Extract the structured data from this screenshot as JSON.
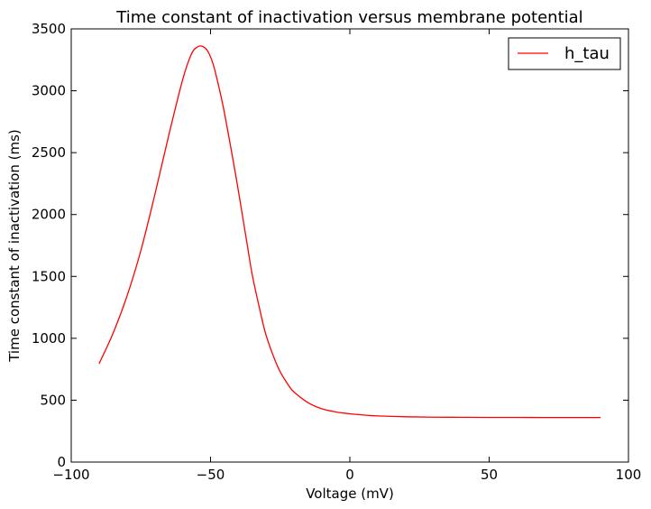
{
  "chart_data": {
    "type": "line",
    "title": "Time constant of inactivation versus membrane potential",
    "xlabel": "Voltage (mV)",
    "ylabel": "Time constant of inactivation (ms)",
    "xlim": [
      -100,
      100
    ],
    "ylim": [
      0,
      3500
    ],
    "xticks": [
      -100,
      -50,
      0,
      50,
      100
    ],
    "xtick_labels": [
      "−100",
      "−50",
      "0",
      "50",
      "100"
    ],
    "yticks": [
      0,
      500,
      1000,
      1500,
      2000,
      2500,
      3000,
      3500
    ],
    "ytick_labels": [
      "0",
      "500",
      "1000",
      "1500",
      "2000",
      "2500",
      "3000",
      "3500"
    ],
    "grid": false,
    "legend_position": "top-right",
    "series": [
      {
        "name": "h_tau",
        "color": "#ff0000",
        "x": [
          -90,
          -85,
          -80,
          -75,
          -70,
          -65,
          -60,
          -57,
          -55,
          -53,
          -51,
          -49,
          -47,
          -45,
          -42,
          -40,
          -37,
          -35,
          -32,
          -30,
          -27,
          -25,
          -22,
          -20,
          -15,
          -10,
          -5,
          0,
          5,
          10,
          20,
          30,
          40,
          50,
          60,
          70,
          80,
          90
        ],
        "y": [
          795,
          1040,
          1340,
          1710,
          2160,
          2640,
          3090,
          3290,
          3350,
          3360,
          3320,
          3210,
          3030,
          2820,
          2450,
          2190,
          1780,
          1510,
          1200,
          1020,
          830,
          730,
          620,
          565,
          480,
          430,
          405,
          390,
          380,
          373,
          366,
          363,
          362,
          361,
          361,
          360,
          360,
          360
        ]
      }
    ]
  }
}
